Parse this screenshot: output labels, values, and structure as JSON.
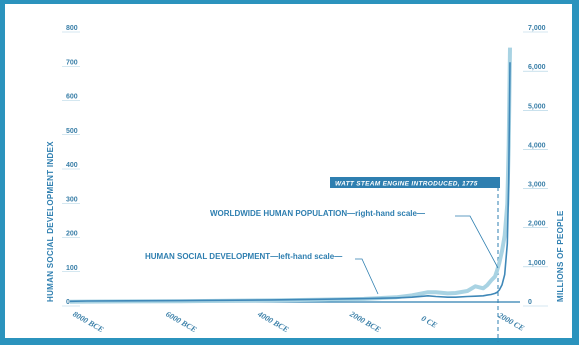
{
  "colors": {
    "background_border": "#2b93bd",
    "population_line": "#a9d3e3",
    "social_line": "#3f88b8",
    "text": "#2f7fb0",
    "banner": "#2f7fb0"
  },
  "chart_data": {
    "type": "line",
    "title": "",
    "xlabel": "",
    "ylabel_left": "HUMAN SOCIAL DEVELOPMENT INDEX",
    "ylabel_right": "MILLIONS OF PEOPLE",
    "x_tick_labels": [
      "8000 BCE",
      "6000 BCE",
      "4000 BCE",
      "2000 BCE",
      "0 CE",
      "2000 CE"
    ],
    "x_tick_values": [
      -8000,
      -6000,
      -4000,
      -2000,
      0,
      2000
    ],
    "xlim": [
      -9000,
      2100
    ],
    "left_axis": {
      "ylim": [
        0,
        800
      ],
      "ticks": [
        "0",
        "100",
        "200",
        "300",
        "400",
        "500",
        "600",
        "700",
        "800"
      ],
      "tick_values": [
        0,
        100,
        200,
        300,
        400,
        500,
        600,
        700,
        800
      ]
    },
    "right_axis": {
      "ylim": [
        0,
        7000
      ],
      "ticks": [
        "0",
        "1,000",
        "2,000",
        "3,000",
        "4,000",
        "5,000",
        "6,000",
        "7,000"
      ],
      "tick_values": [
        0,
        1000,
        2000,
        3000,
        4000,
        5000,
        6000,
        7000
      ]
    },
    "grid": false,
    "series": [
      {
        "name": "HUMAN SOCIAL DEVELOPMENT",
        "axis": "left",
        "x": [
          -9000,
          -8000,
          -6000,
          -4000,
          -3000,
          -2000,
          -1000,
          -500,
          0,
          200,
          500,
          700,
          1000,
          1200,
          1400,
          1500,
          1600,
          1700,
          1750,
          1800,
          1850,
          1900,
          1950,
          1975,
          2000
        ],
        "y": [
          2,
          3,
          4,
          6,
          8,
          10,
          12,
          14,
          18,
          16,
          14,
          14,
          16,
          17,
          18,
          20,
          22,
          25,
          28,
          35,
          50,
          80,
          170,
          350,
          700
        ]
      },
      {
        "name": "WORLDWIDE HUMAN POPULATION",
        "axis": "right",
        "x": [
          -9000,
          -8000,
          -6000,
          -4000,
          -3000,
          -2000,
          -1000,
          -500,
          0,
          200,
          500,
          700,
          1000,
          1200,
          1400,
          1500,
          1600,
          1700,
          1750,
          1800,
          1850,
          1900,
          1950,
          1975,
          2000
        ],
        "y": [
          5,
          10,
          20,
          40,
          60,
          80,
          120,
          170,
          250,
          250,
          220,
          230,
          280,
          400,
          350,
          430,
          550,
          650,
          800,
          1000,
          1300,
          1700,
          2500,
          4000,
          6500
        ]
      }
    ],
    "annotations": {
      "population": "WORLDWIDE HUMAN POPULATION—right-hand scale—",
      "social": "HUMAN SOCIAL DEVELOPMENT—left-hand scale—",
      "event": {
        "label": "WATT STEAM ENGINE INTRODUCED, 1775",
        "x": 1775
      }
    }
  }
}
